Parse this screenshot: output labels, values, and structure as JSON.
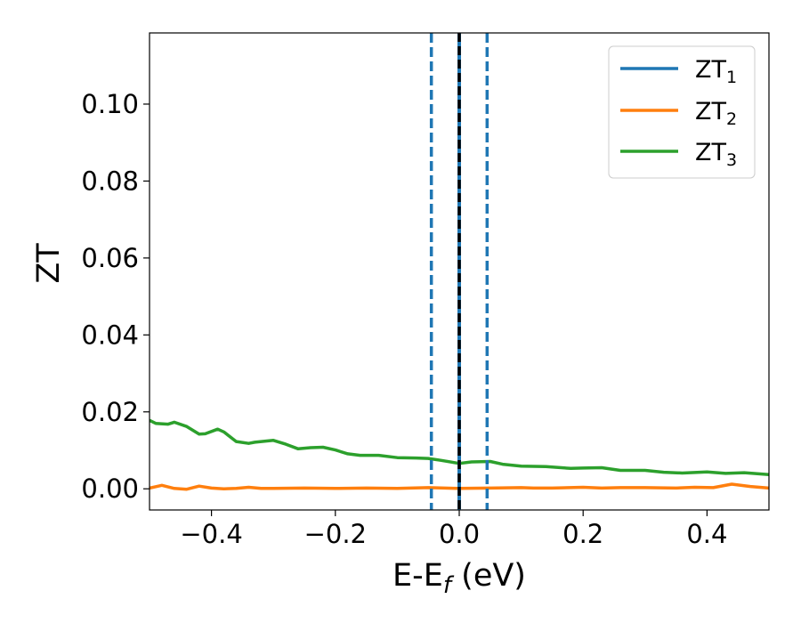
{
  "chart_data": {
    "type": "line",
    "xlabel": {
      "main": "E-E",
      "sub": "f",
      "suffix": " (eV)"
    },
    "ylabel": "ZT",
    "xlim": [
      -0.5,
      0.5
    ],
    "ylim": [
      -0.0055,
      0.1185
    ],
    "x_ticks": [
      -0.4,
      -0.2,
      0.0,
      0.2,
      0.4
    ],
    "x_tick_labels": [
      "−0.4",
      "−0.2",
      "0.0",
      "0.2",
      "0.4"
    ],
    "y_ticks": [
      0.0,
      0.02,
      0.04,
      0.06,
      0.08,
      0.1
    ],
    "y_tick_labels": [
      "0.00",
      "0.02",
      "0.04",
      "0.06",
      "0.08",
      "0.10"
    ],
    "grid": false,
    "legend_position": "top-right",
    "vertical_lines": [
      {
        "x": -0.045,
        "style": "dashed",
        "color": "#1f77b4"
      },
      {
        "x": 0.045,
        "style": "dashed",
        "color": "#1f77b4"
      },
      {
        "x": 0.0,
        "style": "solid",
        "color": "#1f77b4"
      },
      {
        "x": 0.0,
        "style": "dashed",
        "color": "#000000"
      }
    ],
    "series": [
      {
        "name": "ZT",
        "name_sub": "1",
        "color": "#1f77b4",
        "x": [],
        "y": []
      },
      {
        "name": "ZT",
        "name_sub": "2",
        "color": "#ff7f0e",
        "x": [
          -0.5,
          -0.48,
          -0.46,
          -0.44,
          -0.42,
          -0.4,
          -0.38,
          -0.36,
          -0.34,
          -0.32,
          -0.3,
          -0.25,
          -0.2,
          -0.15,
          -0.1,
          -0.05,
          0.0,
          0.05,
          0.1,
          0.12,
          0.15,
          0.2,
          0.23,
          0.26,
          0.3,
          0.35,
          0.38,
          0.41,
          0.44,
          0.47,
          0.5
        ],
        "y": [
          0.0002,
          0.0009,
          0.0001,
          -0.0001,
          0.0007,
          0.0002,
          0.0,
          0.0001,
          0.0004,
          0.0001,
          0.0001,
          0.0002,
          0.0001,
          0.0002,
          0.0001,
          0.0003,
          0.0001,
          0.0002,
          0.0003,
          0.0002,
          0.0002,
          0.0004,
          0.0002,
          0.0003,
          0.0003,
          0.0002,
          0.0004,
          0.0003,
          0.0012,
          0.0006,
          0.0002
        ]
      },
      {
        "name": "ZT",
        "name_sub": "3",
        "color": "#2ca02c",
        "x": [
          -0.5,
          -0.49,
          -0.47,
          -0.46,
          -0.44,
          -0.42,
          -0.41,
          -0.39,
          -0.38,
          -0.36,
          -0.34,
          -0.33,
          -0.3,
          -0.28,
          -0.26,
          -0.24,
          -0.22,
          -0.2,
          -0.18,
          -0.16,
          -0.13,
          -0.1,
          -0.07,
          -0.05,
          -0.03,
          0.0,
          0.02,
          0.05,
          0.07,
          0.1,
          0.14,
          0.18,
          0.2,
          0.23,
          0.26,
          0.3,
          0.33,
          0.36,
          0.4,
          0.43,
          0.46,
          0.5
        ],
        "y": [
          0.0178,
          0.017,
          0.0168,
          0.0173,
          0.0162,
          0.0142,
          0.0143,
          0.0155,
          0.0148,
          0.0123,
          0.0118,
          0.0121,
          0.0126,
          0.0116,
          0.0104,
          0.0107,
          0.0108,
          0.0101,
          0.0091,
          0.0087,
          0.0087,
          0.0081,
          0.008,
          0.0079,
          0.0074,
          0.0066,
          0.007,
          0.0071,
          0.0064,
          0.0059,
          0.0058,
          0.0053,
          0.0054,
          0.0055,
          0.0048,
          0.0048,
          0.0043,
          0.0041,
          0.0044,
          0.004,
          0.0042,
          0.0037
        ]
      }
    ]
  }
}
